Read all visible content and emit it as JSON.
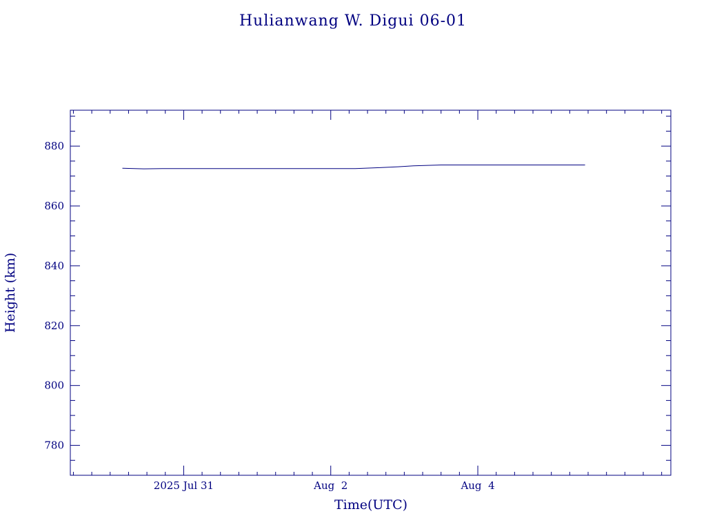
{
  "chart_data": {
    "type": "line",
    "title": "Hulianwang W. Digui 06-01",
    "xlabel": "Time(UTC)",
    "ylabel": "Height (km)",
    "x_unit": "days",
    "xlim": [
      "2025-07-29T11:00Z",
      "2025-08-06T15:00Z"
    ],
    "ylim": [
      770,
      892
    ],
    "x_ticks": [
      {
        "x": "2025-07-31T00:00Z",
        "label": "2025 Jul 31"
      },
      {
        "x": "2025-08-02T00:00Z",
        "label": "Aug  2"
      },
      {
        "x": "2025-08-04T00:00Z",
        "label": "Aug  4"
      }
    ],
    "y_ticks": [
      {
        "y": 780,
        "label": "780"
      },
      {
        "y": 800,
        "label": "800"
      },
      {
        "y": 820,
        "label": "820"
      },
      {
        "y": 840,
        "label": "840"
      },
      {
        "y": 860,
        "label": "860"
      },
      {
        "y": 880,
        "label": "880"
      }
    ],
    "grid": false,
    "colors": {
      "axis": "#000080",
      "series": "#000080"
    },
    "series": [
      {
        "x": [
          "2025-07-30T04:00Z",
          "2025-07-30T11:00Z",
          "2025-07-30T17:00Z",
          "2025-07-31T12:00Z",
          "2025-08-01T12:00Z",
          "2025-08-02T08:00Z",
          "2025-08-02T16:00Z",
          "2025-08-02T22:00Z",
          "2025-08-03T03:00Z",
          "2025-08-03T12:00Z",
          "2025-08-04T12:00Z",
          "2025-08-05T11:00Z"
        ],
        "y": [
          872.6,
          872.4,
          872.5,
          872.5,
          872.5,
          872.5,
          872.8,
          873.1,
          873.4,
          873.7,
          873.7,
          873.7
        ]
      }
    ]
  }
}
